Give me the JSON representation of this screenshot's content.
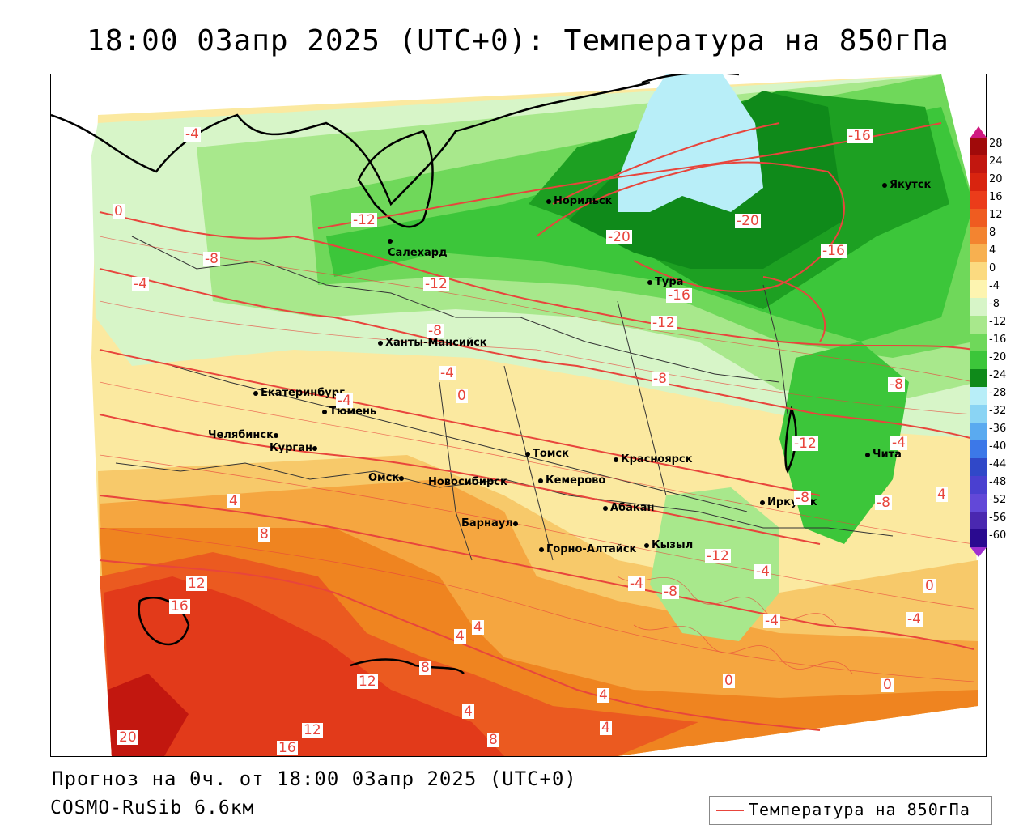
{
  "title": "18:00 03апр 2025 (UTC+0): Температура на 850гПа",
  "footer": {
    "forecast": "Прогноз на 0ч. от 18:00 03апр 2025 (UTC+0)",
    "model": "COSMO-RuSib 6.6км",
    "legend_label": "Температура на 850гПа",
    "legend_color": "#e8453c"
  },
  "colorbar": {
    "labels": [
      "28",
      "24",
      "20",
      "16",
      "12",
      "8",
      "4",
      "0",
      "-4",
      "-8",
      "-12",
      "-16",
      "-20",
      "-24",
      "-28",
      "-32",
      "-36",
      "-40",
      "-44",
      "-48",
      "-52",
      "-56",
      "-60"
    ]
  },
  "cities": [
    {
      "name": "Норильск"
    },
    {
      "name": "Якутск"
    },
    {
      "name": "Салехард"
    },
    {
      "name": "Тура"
    },
    {
      "name": "Ханты-Мансийск"
    },
    {
      "name": "Екатеринбург"
    },
    {
      "name": "Тюмень"
    },
    {
      "name": "Челябинск"
    },
    {
      "name": "Курган"
    },
    {
      "name": "Омск"
    },
    {
      "name": "Новосибирск"
    },
    {
      "name": "Томск"
    },
    {
      "name": "Кемерово"
    },
    {
      "name": "Красноярск"
    },
    {
      "name": "Барнаул"
    },
    {
      "name": "Абакан"
    },
    {
      "name": "Горно-Алтайск"
    },
    {
      "name": "Кызыл"
    },
    {
      "name": "Иркутск"
    },
    {
      "name": "Чита"
    }
  ],
  "contour_labels": [
    "-16",
    "-20",
    "-20",
    "-16",
    "-16",
    "-12",
    "-12",
    "-12",
    "-12",
    "-8",
    "-8",
    "-8",
    "-8",
    "-8",
    "-8",
    "-4",
    "-4",
    "-4",
    "-4",
    "-4",
    "-4",
    "-4",
    "-4",
    "0",
    "0",
    "0",
    "0",
    "0",
    "4",
    "4",
    "4",
    "4",
    "4",
    "4",
    "4",
    "8",
    "8",
    "8",
    "12",
    "12",
    "12",
    "16",
    "16",
    "20",
    "-4",
    "-8",
    "-12"
  ],
  "colors": {
    "contour": "#e8453c"
  }
}
